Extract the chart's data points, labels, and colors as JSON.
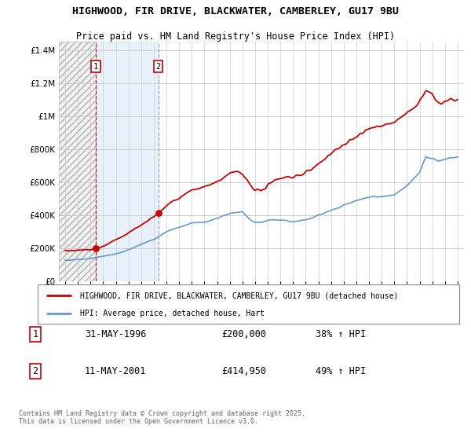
{
  "title": "HIGHWOOD, FIR DRIVE, BLACKWATER, CAMBERLEY, GU17 9BU",
  "subtitle": "Price paid vs. HM Land Registry's House Price Index (HPI)",
  "legend_line1": "HIGHWOOD, FIR DRIVE, BLACKWATER, CAMBERLEY, GU17 9BU (detached house)",
  "legend_line2": "HPI: Average price, detached house, Hart",
  "footer": "Contains HM Land Registry data © Crown copyright and database right 2025.\nThis data is licensed under the Open Government Licence v3.0.",
  "sale1_date": "31-MAY-1996",
  "sale1_price": "£200,000",
  "sale1_hpi": "38% ↑ HPI",
  "sale2_date": "11-MAY-2001",
  "sale2_price": "£414,950",
  "sale2_hpi": "49% ↑ HPI",
  "sale1_x": 1996.42,
  "sale1_y": 200000,
  "sale2_x": 2001.36,
  "sale2_y": 414950,
  "ylim": [
    0,
    1450000
  ],
  "xlim": [
    1993.5,
    2025.5
  ],
  "red_color": "#cc0000",
  "blue_color": "#6699cc",
  "sale2_vline_color": "#8899aa"
}
